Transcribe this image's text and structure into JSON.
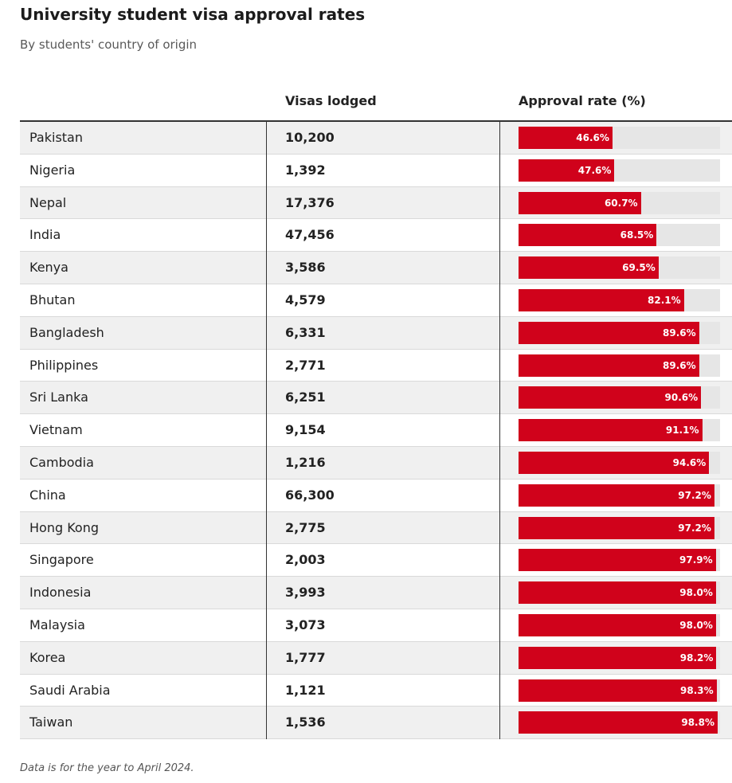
{
  "title": "University student visa approval rates",
  "subtitle": "By students' country of origin",
  "footnote": "Data is for the year to April 2024.",
  "colors": {
    "bar": "#d0021b",
    "track": "#e6e6e6",
    "shade": "#f0f0f0"
  },
  "chart_data": {
    "type": "table",
    "title": "University student visa approval rates",
    "subtitle": "By students' country of origin",
    "columns": [
      "",
      "Visas lodged",
      "Approval rate (%)"
    ],
    "approval_range": [
      0,
      100
    ],
    "rows": [
      {
        "country": "Pakistan",
        "visas": "10,200",
        "approval": 46.6,
        "approval_label": "46.6%"
      },
      {
        "country": "Nigeria",
        "visas": "1,392",
        "approval": 47.6,
        "approval_label": "47.6%"
      },
      {
        "country": "Nepal",
        "visas": "17,376",
        "approval": 60.7,
        "approval_label": "60.7%"
      },
      {
        "country": "India",
        "visas": "47,456",
        "approval": 68.5,
        "approval_label": "68.5%"
      },
      {
        "country": "Kenya",
        "visas": "3,586",
        "approval": 69.5,
        "approval_label": "69.5%"
      },
      {
        "country": "Bhutan",
        "visas": "4,579",
        "approval": 82.1,
        "approval_label": "82.1%"
      },
      {
        "country": "Bangladesh",
        "visas": "6,331",
        "approval": 89.6,
        "approval_label": "89.6%"
      },
      {
        "country": "Philippines",
        "visas": "2,771",
        "approval": 89.6,
        "approval_label": "89.6%"
      },
      {
        "country": "Sri Lanka",
        "visas": "6,251",
        "approval": 90.6,
        "approval_label": "90.6%"
      },
      {
        "country": "Vietnam",
        "visas": "9,154",
        "approval": 91.1,
        "approval_label": "91.1%"
      },
      {
        "country": "Cambodia",
        "visas": "1,216",
        "approval": 94.6,
        "approval_label": "94.6%"
      },
      {
        "country": "China",
        "visas": "66,300",
        "approval": 97.2,
        "approval_label": "97.2%"
      },
      {
        "country": "Hong Kong",
        "visas": "2,775",
        "approval": 97.2,
        "approval_label": "97.2%"
      },
      {
        "country": "Singapore",
        "visas": "2,003",
        "approval": 97.9,
        "approval_label": "97.9%"
      },
      {
        "country": "Indonesia",
        "visas": "3,993",
        "approval": 98.0,
        "approval_label": "98.0%"
      },
      {
        "country": "Malaysia",
        "visas": "3,073",
        "approval": 98.0,
        "approval_label": "98.0%"
      },
      {
        "country": "Korea",
        "visas": "1,777",
        "approval": 98.2,
        "approval_label": "98.2%"
      },
      {
        "country": "Saudi Arabia",
        "visas": "1,121",
        "approval": 98.3,
        "approval_label": "98.3%"
      },
      {
        "country": "Taiwan",
        "visas": "1,536",
        "approval": 98.8,
        "approval_label": "98.8%"
      }
    ]
  }
}
